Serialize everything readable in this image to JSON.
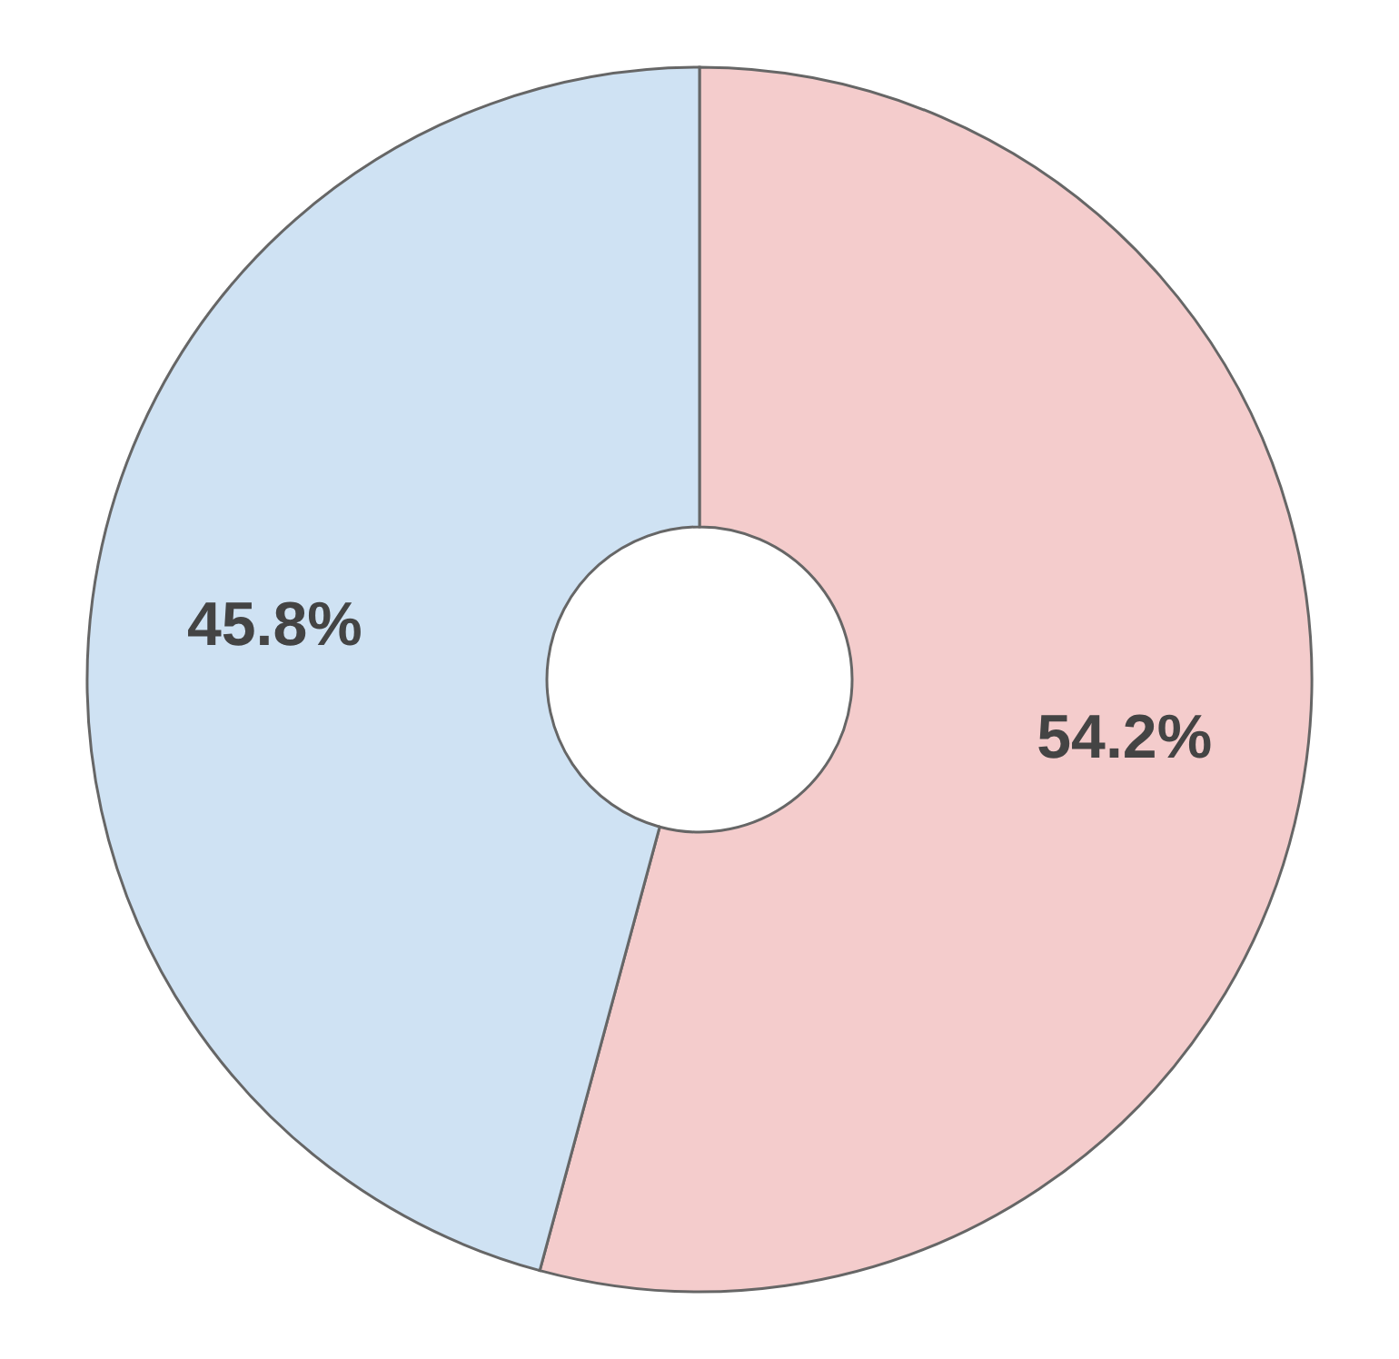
{
  "chart_data": {
    "type": "donut",
    "categories": [
      null,
      null
    ],
    "values": [
      54.2,
      45.8
    ],
    "colors": [
      "#f4cccc",
      "#cfe2f3"
    ],
    "value_labels": [
      "54.2%",
      "45.8%"
    ]
  }
}
